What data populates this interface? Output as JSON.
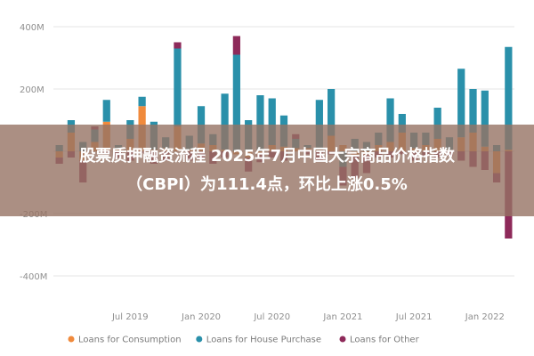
{
  "overlay": {
    "line1": "股票质押融资流程 2025年7月中国大宗商品价格指数",
    "line2": "（CBPI）为111.4点，环比上涨0.5%"
  },
  "colors": {
    "consumption": "#f08a3c",
    "house": "#2a90aa",
    "other": "#8e2a5a",
    "grid": "#e6e6e6"
  },
  "chart_data": {
    "type": "bar",
    "stacked": true,
    "ylim": [
      -480,
      480
    ],
    "yticks": [
      400,
      200,
      -200,
      -400
    ],
    "ytick_labels": [
      "400M",
      "200M",
      "-200M",
      "-400M"
    ],
    "xtick_labels": [
      {
        "label": "Jul 2019",
        "at": 6
      },
      {
        "label": "Jan 2020",
        "at": 12
      },
      {
        "label": "Jul 2020",
        "at": 18
      },
      {
        "label": "Jan 2021",
        "at": 24
      },
      {
        "label": "Jul 2021",
        "at": 30
      },
      {
        "label": "Jan 2022",
        "at": 36
      }
    ],
    "categories": [
      "Jan 2019",
      "Feb 2019",
      "Mar 2019",
      "Apr 2019",
      "May 2019",
      "Jun 2019",
      "Jul 2019",
      "Aug 2019",
      "Sep 2019",
      "Oct 2019",
      "Nov 2019",
      "Dec 2019",
      "Jan 2020",
      "Feb 2020",
      "Mar 2020",
      "Apr 2020",
      "May 2020",
      "Jun 2020",
      "Jul 2020",
      "Aug 2020",
      "Sep 2020",
      "Oct 2020",
      "Nov 2020",
      "Dec 2020",
      "Jan 2021",
      "Feb 2021",
      "Mar 2021",
      "Apr 2021",
      "May 2021",
      "Jun 2021",
      "Jul 2021",
      "Aug 2021",
      "Sep 2021",
      "Oct 2021",
      "Nov 2021",
      "Dec 2021",
      "Jan 2022",
      "Feb 2022",
      "Mar 2022"
    ],
    "series": [
      {
        "name": "Loans for Consumption",
        "color": "#f08a3c",
        "values": [
          -20,
          60,
          -30,
          30,
          95,
          10,
          40,
          145,
          5,
          10,
          80,
          5,
          25,
          20,
          5,
          -10,
          -20,
          -10,
          20,
          15,
          10,
          10,
          5,
          50,
          20,
          -15,
          -10,
          20,
          30,
          60,
          10,
          20,
          40,
          5,
          45,
          60,
          15,
          -70,
          5
        ]
      },
      {
        "name": "Loans for House Purchase",
        "color": "#2a90aa",
        "values": [
          20,
          40,
          30,
          40,
          70,
          10,
          60,
          30,
          90,
          35,
          250,
          45,
          120,
          35,
          180,
          310,
          100,
          180,
          150,
          100,
          30,
          10,
          160,
          150,
          -50,
          40,
          30,
          40,
          140,
          60,
          50,
          40,
          100,
          40,
          220,
          140,
          180,
          20,
          330
        ]
      },
      {
        "name": "Loans for Other",
        "color": "#8e2a5a",
        "values": [
          -20,
          -20,
          -70,
          10,
          -10,
          -20,
          -30,
          -5,
          -40,
          -30,
          20,
          -30,
          -20,
          -40,
          -20,
          60,
          -45,
          -25,
          -20,
          -30,
          15,
          -10,
          -30,
          -10,
          -60,
          -70,
          -60,
          -20,
          -20,
          -10,
          -30,
          -15,
          -20,
          -15,
          -30,
          -50,
          -60,
          -30,
          -280
        ]
      }
    ],
    "legend_position": "bottom",
    "grid": true
  }
}
